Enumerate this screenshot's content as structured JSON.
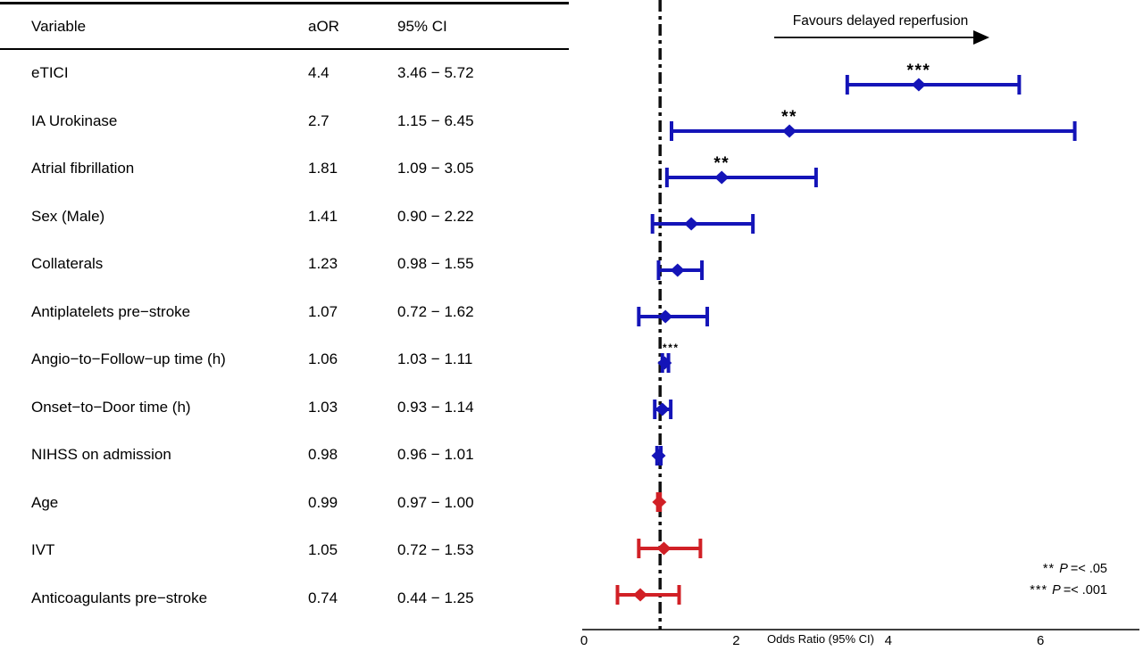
{
  "table": {
    "headers": {
      "variable": "Variable",
      "aor": "aOR",
      "ci": "95% CI"
    },
    "rows": [
      {
        "variable": "eTICI",
        "aor": "4.4",
        "ci": "3.46 − 5.72"
      },
      {
        "variable": "IA Urokinase",
        "aor": "2.7",
        "ci": "1.15 − 6.45"
      },
      {
        "variable": "Atrial fibrillation",
        "aor": "1.81",
        "ci": "1.09 − 3.05"
      },
      {
        "variable": "Sex (Male)",
        "aor": "1.41",
        "ci": "0.90 − 2.22"
      },
      {
        "variable": "Collaterals",
        "aor": "1.23",
        "ci": "0.98 − 1.55"
      },
      {
        "variable": "Antiplatelets pre−stroke",
        "aor": "1.07",
        "ci": "0.72 − 1.62"
      },
      {
        "variable": "Angio−to−Follow−up time (h)",
        "aor": "1.06",
        "ci": "1.03 − 1.11"
      },
      {
        "variable": "Onset−to−Door time (h)",
        "aor": "1.03",
        "ci": "0.93 − 1.14"
      },
      {
        "variable": "NIHSS on admission",
        "aor": "0.98",
        "ci": "0.96 − 1.01"
      },
      {
        "variable": "Age",
        "aor": "0.99",
        "ci": "0.97 − 1.00"
      },
      {
        "variable": "IVT",
        "aor": "1.05",
        "ci": "0.72 − 1.53"
      },
      {
        "variable": "Anticoagulants pre−stroke",
        "aor": "0.74",
        "ci": "0.44 − 1.25"
      }
    ]
  },
  "chart_data": {
    "type": "forest",
    "xlabel": "Odds Ratio (95% CI)",
    "xlim": [
      0,
      7.3
    ],
    "xticks": [
      0,
      2,
      4,
      6
    ],
    "reference_line": 1,
    "arrow_annotation": "Favours delayed reperfusion",
    "colors": {
      "favourable": "#1414b8",
      "unfavourable": "#d12026",
      "reference": "#111111",
      "axis": "#000000"
    },
    "rows": [
      {
        "label": "eTICI",
        "or": 4.4,
        "lo": 3.46,
        "hi": 5.72,
        "group": "favourable",
        "stars": "***",
        "star_size": "large"
      },
      {
        "label": "IA Urokinase",
        "or": 2.7,
        "lo": 1.15,
        "hi": 6.45,
        "group": "favourable",
        "stars": "**",
        "star_size": "large"
      },
      {
        "label": "Atrial fibrillation",
        "or": 1.81,
        "lo": 1.09,
        "hi": 3.05,
        "group": "favourable",
        "stars": "**",
        "star_size": "large"
      },
      {
        "label": "Sex (Male)",
        "or": 1.41,
        "lo": 0.9,
        "hi": 2.22,
        "group": "favourable",
        "stars": "",
        "star_size": ""
      },
      {
        "label": "Collaterals",
        "or": 1.23,
        "lo": 0.98,
        "hi": 1.55,
        "group": "favourable",
        "stars": "",
        "star_size": ""
      },
      {
        "label": "Antiplatelets pre−stroke",
        "or": 1.07,
        "lo": 0.72,
        "hi": 1.62,
        "group": "favourable",
        "stars": "",
        "star_size": ""
      },
      {
        "label": "Angio−to−Follow−up time (h)",
        "or": 1.06,
        "lo": 1.03,
        "hi": 1.11,
        "group": "favourable",
        "stars": "***",
        "star_size": "small"
      },
      {
        "label": "Onset−to−Door time (h)",
        "or": 1.03,
        "lo": 0.93,
        "hi": 1.14,
        "group": "favourable",
        "stars": "",
        "star_size": ""
      },
      {
        "label": "NIHSS on admission",
        "or": 0.98,
        "lo": 0.96,
        "hi": 1.01,
        "group": "favourable",
        "stars": "",
        "star_size": ""
      },
      {
        "label": "Age",
        "or": 0.99,
        "lo": 0.97,
        "hi": 1.0,
        "group": "unfavourable",
        "stars": "",
        "star_size": ""
      },
      {
        "label": "IVT",
        "or": 1.05,
        "lo": 0.72,
        "hi": 1.53,
        "group": "unfavourable",
        "stars": "",
        "star_size": ""
      },
      {
        "label": "Anticoagulants pre−stroke",
        "or": 0.74,
        "lo": 0.44,
        "hi": 1.25,
        "group": "unfavourable",
        "stars": "",
        "star_size": ""
      }
    ],
    "significance_legend": [
      {
        "stars": "**",
        "p": "P",
        "rest": "=< .05"
      },
      {
        "stars": "***",
        "p": "P",
        "rest": "=< .001"
      }
    ]
  }
}
